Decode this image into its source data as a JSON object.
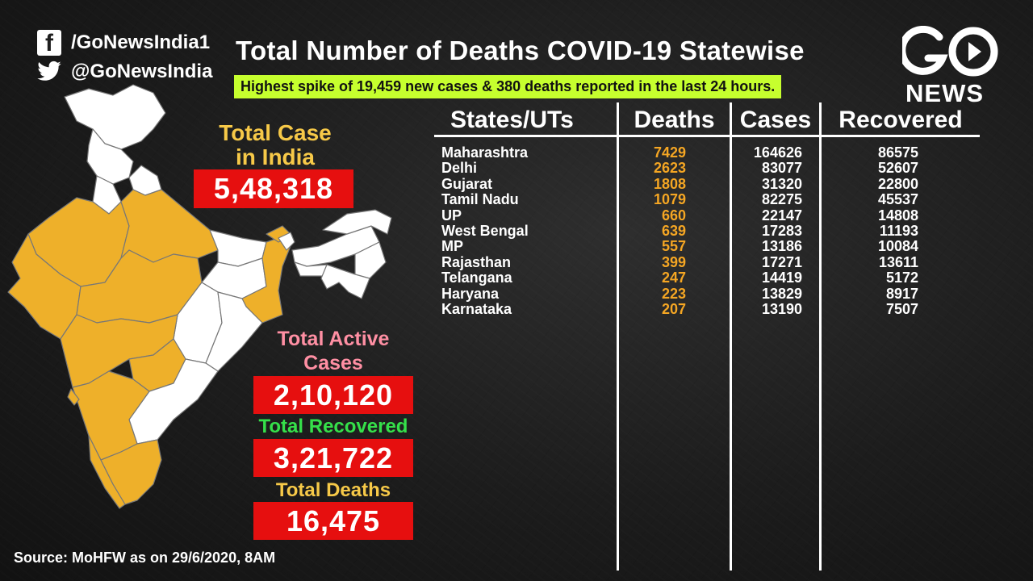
{
  "social": {
    "facebook_icon": "facebook-icon",
    "facebook_handle": "/GoNewsIndia1",
    "twitter_icon": "twitter-icon",
    "twitter_handle": "@GoNewsIndia"
  },
  "title": "Total Number of Deaths COVID-19 Statewise",
  "subtitle": "Highest spike of 19,459 new cases & 380 deaths reported in the last 24 hours.",
  "logo": {
    "text": "NEWS",
    "icon": "gonews-logo-icon"
  },
  "stats": {
    "total_cases_label_1": "Total Case",
    "total_cases_label_2": "in India",
    "total_cases_value": "5,48,318",
    "active_label_1": "Total Active",
    "active_label_2": "Cases",
    "active_value": "2,10,120",
    "recovered_label": "Total Recovered",
    "recovered_value": "3,21,722",
    "deaths_label": "Total Deaths",
    "deaths_value": "16,475"
  },
  "colors": {
    "highlight_state": "#eeb02a",
    "value_box": "#e60f0f",
    "subtitle_bg": "#c6ff2e",
    "cases_label": "#f7c948",
    "active_label": "#ff8fa3",
    "recovered_label": "#35e04a",
    "deaths_label": "#f7c948",
    "deaths_column": "#f5a623"
  },
  "table": {
    "headers": [
      "States/UTs",
      "Deaths",
      "Cases",
      "Recovered"
    ],
    "rows": [
      {
        "state": "Maharashtra",
        "deaths": "7429",
        "cases": "164626",
        "recovered": "86575"
      },
      {
        "state": "Delhi",
        "deaths": "2623",
        "cases": "83077",
        "recovered": "52607"
      },
      {
        "state": "Gujarat",
        "deaths": "1808",
        "cases": "31320",
        "recovered": "22800"
      },
      {
        "state": "Tamil Nadu",
        "deaths": "1079",
        "cases": "82275",
        "recovered": "45537"
      },
      {
        "state": "UP",
        "deaths": "660",
        "cases": "22147",
        "recovered": "14808"
      },
      {
        "state": "West Bengal",
        "deaths": "639",
        "cases": "17283",
        "recovered": "11193"
      },
      {
        "state": "MP",
        "deaths": "557",
        "cases": "13186",
        "recovered": "10084"
      },
      {
        "state": "Rajasthan",
        "deaths": "399",
        "cases": "17271",
        "recovered": "13611"
      },
      {
        "state": "Telangana",
        "deaths": "247",
        "cases": "14419",
        "recovered": "5172"
      },
      {
        "state": "Haryana",
        "deaths": "223",
        "cases": "13829",
        "recovered": "8917"
      },
      {
        "state": "Karnataka",
        "deaths": "207",
        "cases": "13190",
        "recovered": "7507"
      }
    ]
  },
  "source": "Source: MoHFW as on 29/6/2020, 8AM"
}
